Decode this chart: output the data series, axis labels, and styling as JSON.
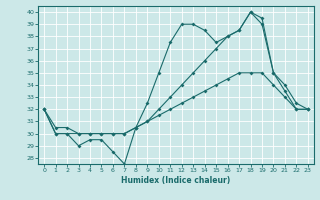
{
  "xlabel": "Humidex (Indice chaleur)",
  "bg_color": "#cce8e8",
  "line_color": "#1a6b6b",
  "grid_color": "#b8d8d8",
  "xlim": [
    -0.5,
    23.5
  ],
  "ylim": [
    27.5,
    40.5
  ],
  "yticks": [
    28,
    29,
    30,
    31,
    32,
    33,
    34,
    35,
    36,
    37,
    38,
    39,
    40
  ],
  "xticks": [
    0,
    1,
    2,
    3,
    4,
    5,
    6,
    7,
    8,
    9,
    10,
    11,
    12,
    13,
    14,
    15,
    16,
    17,
    18,
    19,
    20,
    21,
    22,
    23
  ],
  "line1_x": [
    0,
    1,
    2,
    3,
    4,
    5,
    6,
    7,
    8,
    9,
    10,
    11,
    12,
    13,
    14,
    15,
    16,
    17,
    18,
    19,
    20,
    21,
    22,
    23
  ],
  "line1_y": [
    32,
    30,
    30,
    29,
    29.5,
    29.5,
    28.5,
    27.5,
    30.5,
    32.5,
    35,
    37.5,
    39,
    39,
    38.5,
    37.5,
    38,
    38.5,
    40,
    39,
    35,
    33.5,
    32,
    32
  ],
  "line2_x": [
    0,
    1,
    2,
    3,
    4,
    5,
    6,
    7,
    8,
    9,
    10,
    11,
    12,
    13,
    14,
    15,
    16,
    17,
    18,
    19,
    20,
    21,
    22,
    23
  ],
  "line2_y": [
    32,
    30.5,
    30.5,
    30,
    30,
    30,
    30,
    30,
    30.5,
    31,
    31.5,
    32,
    32.5,
    33,
    33.5,
    34,
    34.5,
    35,
    35,
    35,
    34,
    33,
    32,
    32
  ],
  "line3_x": [
    0,
    1,
    2,
    3,
    4,
    5,
    6,
    7,
    8,
    9,
    10,
    11,
    12,
    13,
    14,
    15,
    16,
    17,
    18,
    19,
    20,
    21,
    22,
    23
  ],
  "line3_y": [
    32,
    30,
    30,
    30,
    30,
    30,
    30,
    30,
    30.5,
    31,
    32,
    33,
    34,
    35,
    36,
    37,
    38,
    38.5,
    40,
    39.5,
    35,
    34,
    32.5,
    32
  ]
}
